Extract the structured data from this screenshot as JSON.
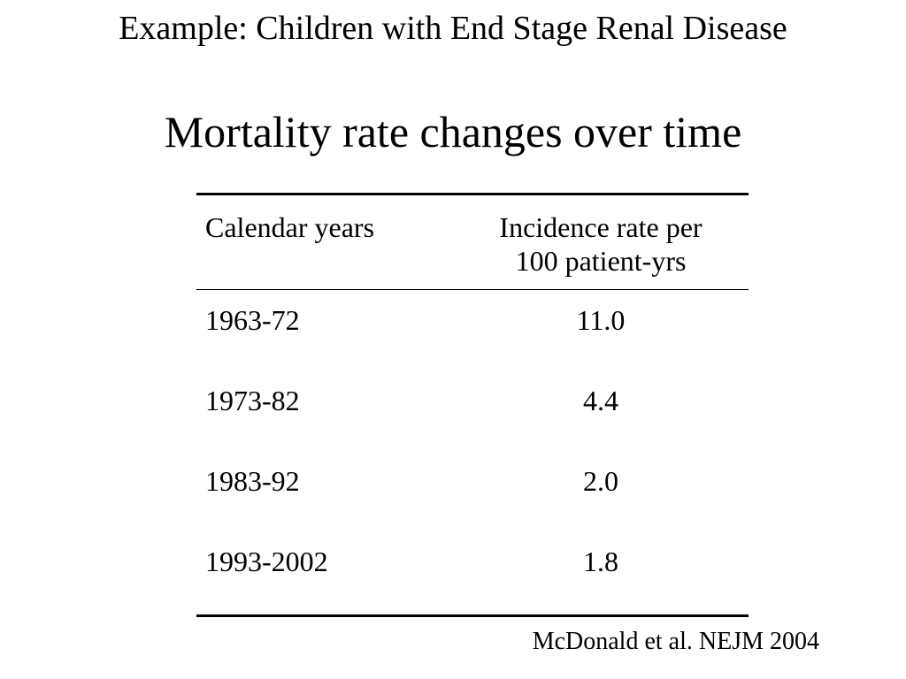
{
  "slide": {
    "heading": "Example: Children with End Stage Renal Disease",
    "title": "Mortality rate changes over time",
    "source": "McDonald et al. NEJM 2004"
  },
  "table": {
    "columns": [
      {
        "lines": [
          "Calendar years"
        ]
      },
      {
        "lines": [
          "Incidence rate per",
          "100 patient-yrs"
        ]
      }
    ],
    "rows": [
      [
        "1963-72",
        "11.0"
      ],
      [
        "1973-82",
        "4.4"
      ],
      [
        "1983-92",
        "2.0"
      ],
      [
        "1993-2002",
        "1.8"
      ]
    ]
  }
}
